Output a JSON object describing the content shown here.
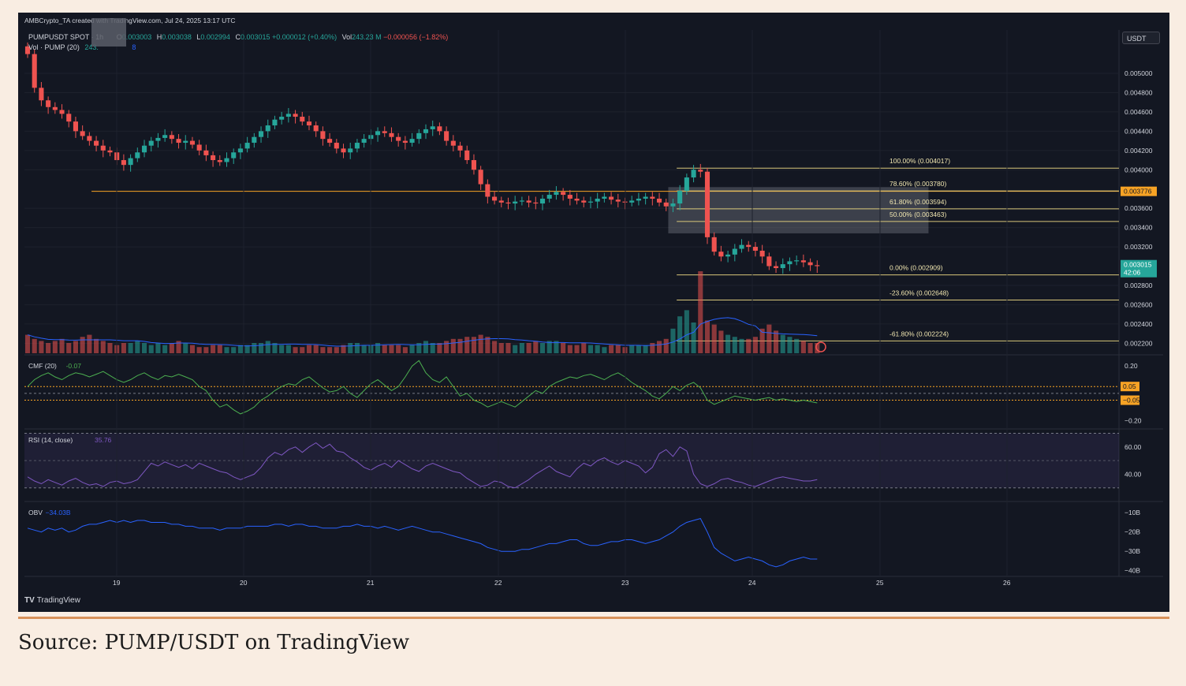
{
  "header": {
    "attribution": "AMBCrypto_TA created with TradingView.com, Jul 24, 2025 13:17 UTC",
    "symbol": "PUMPUSDT SPOT · 1h",
    "open_label": "O",
    "open": "0.003003",
    "high_label": "H",
    "high": "0.003038",
    "low_label": "L",
    "low": "0.002994",
    "close_label": "C",
    "close": "0.003015",
    "change": "+0.000012 (+0.40%)",
    "vol_label": "Vol",
    "vol": "243.23 M",
    "vol_change": "−0.000056 (−1.82%)",
    "vol_indicator": "Vol · PUMP (20)",
    "vol_indicator_value": "243.",
    "vol_indicator_value2": "8"
  },
  "currency_button": "USDT",
  "tradingview_logo": "TradingView",
  "caption": "Source: PUMP/USDT on TradingView",
  "colors": {
    "up": "#26a69a",
    "down": "#ef5350",
    "fib": "#d8c67a",
    "orange": "#f7a325",
    "cmf": "#4caf50",
    "rsi": "#7e57c2",
    "obv": "#2962ff"
  },
  "chart_data": [
    {
      "type": "candlestick",
      "name": "price",
      "x_ticks": [
        "19",
        "20",
        "21",
        "22",
        "23",
        "24",
        "25",
        "26"
      ],
      "y_ticks": [
        "0.005000",
        "0.004800",
        "0.004600",
        "0.004400",
        "0.004200",
        "0.004000",
        "0.003600",
        "0.003400",
        "0.003200",
        "0.002800",
        "0.002600",
        "0.002400",
        "0.002200"
      ],
      "ylim": [
        0.00208,
        0.00545
      ],
      "price_path": [
        0.0052,
        0.00485,
        0.00472,
        0.00465,
        0.00462,
        0.00458,
        0.0045,
        0.0044,
        0.00435,
        0.0043,
        0.00425,
        0.0042,
        0.00418,
        0.0041,
        0.00405,
        0.00412,
        0.00418,
        0.00425,
        0.0043,
        0.00433,
        0.00436,
        0.00432,
        0.00428,
        0.0043,
        0.00426,
        0.0042,
        0.00415,
        0.0041,
        0.00408,
        0.00412,
        0.00418,
        0.00422,
        0.00428,
        0.00434,
        0.0044,
        0.00446,
        0.00452,
        0.00455,
        0.00458,
        0.00455,
        0.0045,
        0.00446,
        0.0044,
        0.00432,
        0.00428,
        0.00422,
        0.00418,
        0.00422,
        0.00428,
        0.00432,
        0.00436,
        0.0044,
        0.00438,
        0.00434,
        0.0043,
        0.00428,
        0.00432,
        0.00438,
        0.00442,
        0.00445,
        0.0044,
        0.0043,
        0.00425,
        0.0042,
        0.0041,
        0.004,
        0.00385,
        0.00372,
        0.00368,
        0.00366,
        0.00365,
        0.00367,
        0.00368,
        0.00366,
        0.00365,
        0.0037,
        0.00374,
        0.00377,
        0.00374,
        0.0037,
        0.00368,
        0.00366,
        0.00367,
        0.0037,
        0.00372,
        0.00369,
        0.00367,
        0.00366,
        0.00368,
        0.0037,
        0.00372,
        0.0037,
        0.00366,
        0.00362,
        0.00365,
        0.00378,
        0.00392,
        0.004,
        0.00398,
        0.0033,
        0.00315,
        0.0031,
        0.00312,
        0.00318,
        0.00322,
        0.0032,
        0.00316,
        0.0031,
        0.003,
        0.00298,
        0.00302,
        0.00305,
        0.00306,
        0.00304,
        0.00301,
        0.003
      ],
      "fibonacci": [
        {
          "label": "100.00% (0.004017)",
          "value": 0.004017
        },
        {
          "label": "78.60% (0.003780)",
          "value": 0.00378
        },
        {
          "label": "61.80% (0.003594)",
          "value": 0.003594
        },
        {
          "label": "50.00% (0.003463)",
          "value": 0.003463
        },
        {
          "label": "0.00% (0.002909)",
          "value": 0.002909
        },
        {
          "label": "-23.60% (0.002648)",
          "value": 0.002648
        },
        {
          "label": "-61.80% (0.002224)",
          "value": 0.002224
        }
      ],
      "fib_zone": [
        0.00334,
        0.00382
      ],
      "horizontal_line": {
        "value": 0.003776,
        "label": "0.003776"
      },
      "last_price": {
        "value": 0.003015,
        "label": "0.003015",
        "countdown": "42:06"
      },
      "volume_path": [
        0.9,
        0.7,
        0.6,
        0.5,
        0.6,
        0.7,
        0.5,
        0.6,
        0.8,
        0.9,
        0.7,
        0.6,
        0.5,
        0.4,
        0.5,
        0.5,
        0.6,
        0.5,
        0.4,
        0.5,
        0.4,
        0.5,
        0.6,
        0.5,
        0.4,
        0.3,
        0.3,
        0.4,
        0.4,
        0.3,
        0.3,
        0.4,
        0.4,
        0.5,
        0.5,
        0.6,
        0.5,
        0.4,
        0.4,
        0.3,
        0.3,
        0.4,
        0.4,
        0.3,
        0.3,
        0.3,
        0.4,
        0.5,
        0.5,
        0.4,
        0.4,
        0.5,
        0.4,
        0.4,
        0.4,
        0.3,
        0.4,
        0.5,
        0.6,
        0.5,
        0.5,
        0.6,
        0.7,
        0.7,
        0.8,
        0.8,
        0.9,
        0.8,
        0.6,
        0.5,
        0.5,
        0.4,
        0.5,
        0.5,
        0.6,
        0.5,
        0.6,
        0.6,
        0.5,
        0.4,
        0.4,
        0.5,
        0.4,
        0.4,
        0.3,
        0.4,
        0.4,
        0.3,
        0.4,
        0.4,
        0.4,
        0.5,
        0.6,
        0.7,
        1.2,
        1.8,
        2.1,
        1.5,
        4.0,
        1.6,
        1.4,
        1.1,
        0.9,
        0.8,
        0.7,
        0.7,
        0.8,
        1.2,
        1.4,
        1.1,
        0.9,
        0.8,
        0.7,
        0.6,
        0.5,
        0.5
      ]
    },
    {
      "type": "line",
      "name": "CMF (20)",
      "label": "CMF (20)",
      "value_label": "-0.07",
      "y_ticks": [
        "0.20",
        "−0.20"
      ],
      "ylim": [
        -0.26,
        0.27
      ],
      "levels": [
        {
          "value": 0.05,
          "label": "0.05"
        },
        {
          "value": -0.05,
          "label": "−0.05"
        }
      ],
      "values": [
        0.05,
        0.1,
        0.13,
        0.15,
        0.12,
        0.1,
        0.13,
        0.15,
        0.14,
        0.12,
        0.14,
        0.16,
        0.13,
        0.1,
        0.08,
        0.1,
        0.13,
        0.15,
        0.12,
        0.1,
        0.13,
        0.12,
        0.14,
        0.12,
        0.1,
        0.05,
        0.02,
        -0.05,
        -0.1,
        -0.08,
        -0.12,
        -0.15,
        -0.13,
        -0.1,
        -0.05,
        -0.02,
        0.02,
        0.05,
        0.07,
        0.06,
        0.1,
        0.12,
        0.08,
        0.04,
        0.01,
        0.02,
        0.05,
        0.0,
        -0.03,
        0.02,
        0.07,
        0.1,
        0.06,
        0.02,
        0.05,
        0.12,
        0.2,
        0.24,
        0.15,
        0.1,
        0.08,
        0.12,
        0.05,
        -0.02,
        0.0,
        -0.05,
        -0.07,
        -0.1,
        -0.08,
        -0.06,
        -0.08,
        -0.1,
        -0.06,
        -0.02,
        0.02,
        0.0,
        0.05,
        0.08,
        0.1,
        0.12,
        0.11,
        0.13,
        0.14,
        0.12,
        0.1,
        0.13,
        0.15,
        0.12,
        0.08,
        0.05,
        0.02,
        -0.02,
        -0.04,
        0.0,
        0.05,
        0.02,
        0.06,
        0.08,
        0.04,
        -0.05,
        -0.08,
        -0.06,
        -0.04,
        -0.02,
        -0.03,
        -0.04,
        -0.05,
        -0.04,
        -0.03,
        -0.05,
        -0.04,
        -0.05,
        -0.06,
        -0.05,
        -0.06,
        -0.07
      ]
    },
    {
      "type": "line",
      "name": "RSI (14, close)",
      "label": "RSI (14, close)",
      "value_label": "35.76",
      "y_ticks": [
        "60.00",
        "40.00"
      ],
      "ylim": [
        20,
        72
      ],
      "band": [
        30,
        70
      ],
      "midline": 50,
      "values": [
        38,
        35,
        33,
        36,
        34,
        32,
        35,
        37,
        34,
        32,
        33,
        31,
        34,
        35,
        33,
        34,
        36,
        42,
        48,
        46,
        49,
        47,
        45,
        47,
        44,
        48,
        46,
        44,
        42,
        41,
        38,
        36,
        38,
        40,
        45,
        52,
        56,
        54,
        58,
        60,
        56,
        60,
        63,
        59,
        62,
        57,
        56,
        52,
        49,
        45,
        43,
        46,
        48,
        45,
        50,
        47,
        44,
        42,
        46,
        48,
        46,
        44,
        42,
        41,
        37,
        34,
        31,
        32,
        35,
        34,
        31,
        30,
        33,
        36,
        40,
        43,
        46,
        42,
        40,
        38,
        44,
        48,
        46,
        50,
        52,
        49,
        47,
        50,
        48,
        46,
        41,
        45,
        55,
        58,
        53,
        60,
        57,
        40,
        33,
        31,
        33,
        36,
        37,
        35,
        34,
        32,
        31,
        33,
        35,
        37,
        38,
        37,
        36,
        35,
        35,
        36
      ]
    },
    {
      "type": "line",
      "name": "OBV",
      "label": "OBV",
      "value_label": "−34.03B",
      "y_ticks": [
        "−10B",
        "−20B",
        "−30B",
        "−40B"
      ],
      "ylim": [
        -43,
        -5
      ],
      "values": [
        -18,
        -19,
        -20,
        -18,
        -19,
        -18,
        -20,
        -19,
        -17,
        -16,
        -16,
        -15,
        -14,
        -15,
        -14,
        -15,
        -14,
        -14,
        -15,
        -15,
        -15,
        -16,
        -16,
        -17,
        -17,
        -18,
        -18,
        -18,
        -19,
        -18,
        -18,
        -18,
        -17,
        -17,
        -17,
        -17,
        -16,
        -16,
        -17,
        -16,
        -16,
        -17,
        -17,
        -18,
        -18,
        -18,
        -17,
        -17,
        -16,
        -17,
        -17,
        -18,
        -17,
        -18,
        -19,
        -18,
        -17,
        -18,
        -19,
        -20,
        -20,
        -21,
        -22,
        -23,
        -24,
        -25,
        -26,
        -28,
        -29,
        -30,
        -30,
        -30,
        -29,
        -29,
        -28,
        -27,
        -26,
        -26,
        -25,
        -24,
        -24,
        -26,
        -27,
        -27,
        -26,
        -25,
        -25,
        -24,
        -24,
        -25,
        -26,
        -25,
        -24,
        -22,
        -20,
        -17,
        -15,
        -14,
        -13,
        -20,
        -28,
        -31,
        -33,
        -35,
        -34,
        -33,
        -34,
        -35,
        -37,
        -38,
        -37,
        -35,
        -34,
        -33,
        -34,
        -34
      ]
    }
  ]
}
